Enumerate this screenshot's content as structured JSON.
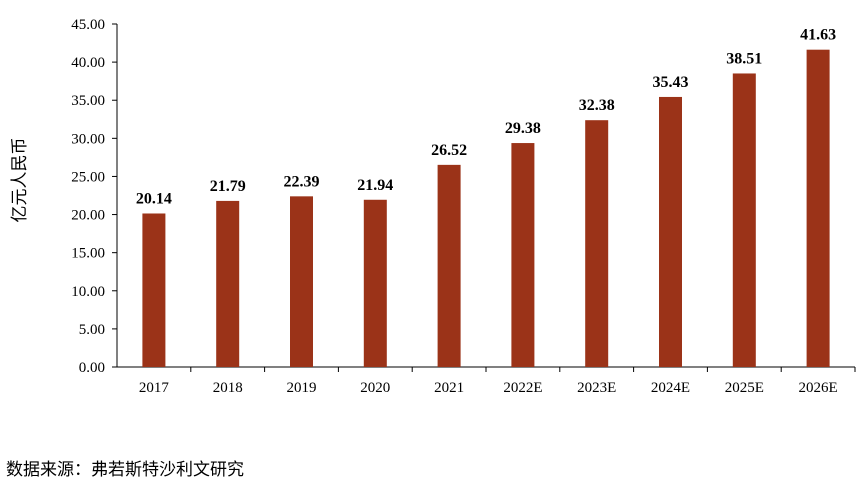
{
  "chart_data": {
    "type": "bar",
    "categories": [
      "2017",
      "2018",
      "2019",
      "2020",
      "2021",
      "2022E",
      "2023E",
      "2024E",
      "2025E",
      "2026E"
    ],
    "values": [
      20.14,
      21.79,
      22.39,
      21.94,
      26.52,
      29.38,
      32.38,
      35.43,
      38.51,
      41.63
    ],
    "value_labels": [
      "20.14",
      "21.79",
      "22.39",
      "21.94",
      "26.52",
      "29.38",
      "32.38",
      "35.43",
      "38.51",
      "41.63"
    ],
    "ylabel": "亿元人民币",
    "ylim": [
      0,
      45
    ],
    "yticks": [
      "0.00",
      "5.00",
      "10.00",
      "15.00",
      "20.00",
      "25.00",
      "30.00",
      "35.00",
      "40.00",
      "45.00"
    ],
    "bar_color": "#9B3318",
    "grid": false,
    "legend": "none"
  },
  "source_note": "数据来源：弗若斯特沙利文研究"
}
